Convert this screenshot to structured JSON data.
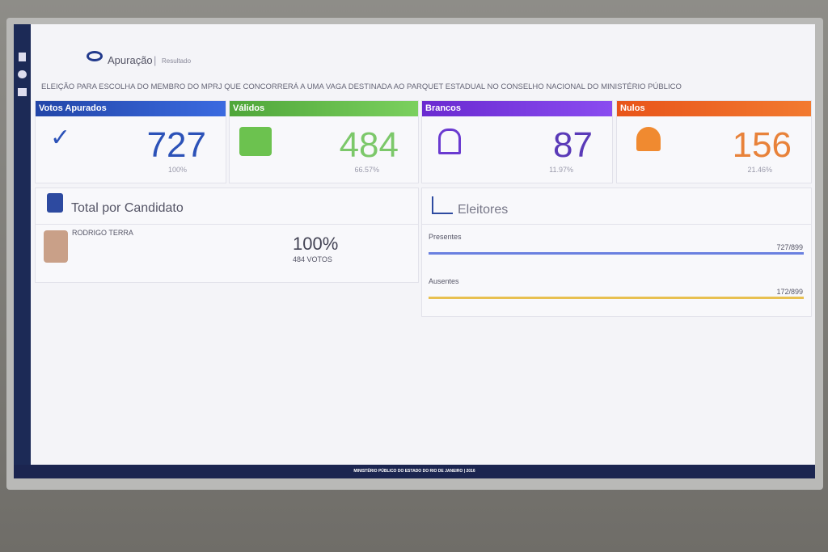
{
  "header": {
    "title": "Apuração",
    "subtitle": "Resultado"
  },
  "election": "ELEIÇÃO PARA ESCOLHA DO MEMBRO DO MPRJ QUE CONCORRERÁ A UMA VAGA DESTINADA AO PARQUET ESTADUAL NO CONSELHO NACIONAL DO MINISTÉRIO PÚBLICO",
  "cards": [
    {
      "label": "Votos Apurados",
      "value": "727",
      "percent": "100%"
    },
    {
      "label": "Válidos",
      "value": "484",
      "percent": "66.57%"
    },
    {
      "label": "Brancos",
      "value": "87",
      "percent": "11.97%"
    },
    {
      "label": "Nulos",
      "value": "156",
      "percent": "21.46%"
    }
  ],
  "candidates": {
    "title": "Total por Candidato",
    "rows": [
      {
        "name": "RODRIGO TERRA",
        "percent": "100%",
        "votes": "484 VOTOS"
      }
    ]
  },
  "voters": {
    "title": "Eleitores",
    "rows": [
      {
        "label": "Presentes",
        "count": "727/899"
      },
      {
        "label": "Ausentes",
        "count": "172/899"
      }
    ]
  },
  "footer": "MINISTÉRIO PÚBLICO DO ESTADO DO RIO DE JANEIRO | 2016"
}
